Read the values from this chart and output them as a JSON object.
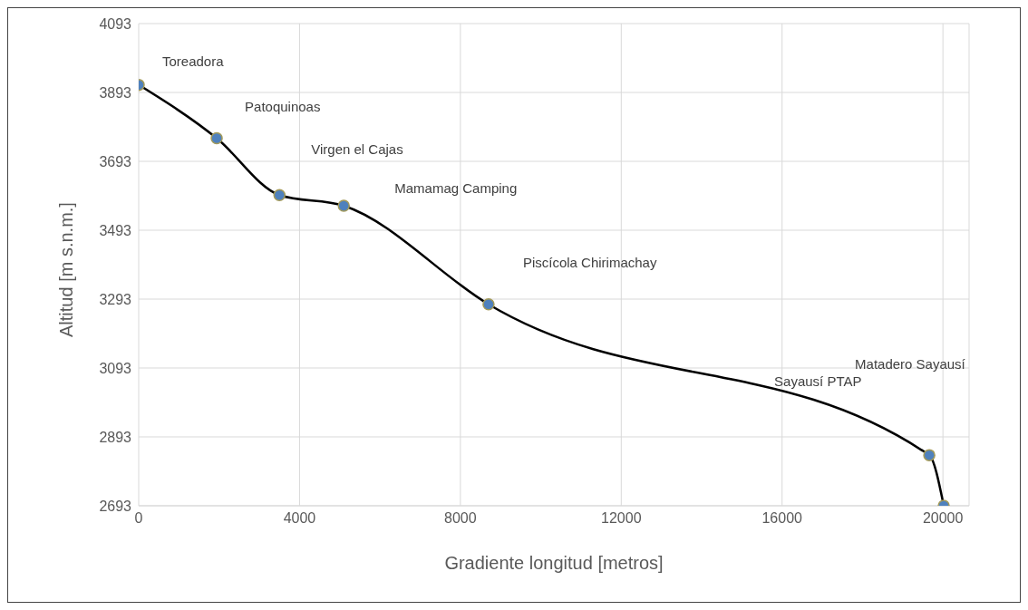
{
  "chart_data": {
    "type": "line",
    "xlabel": "Gradiente  longitud [metros]",
    "ylabel": "Altitud [m s.n.m.]",
    "x": [
      0,
      1940,
      3500,
      5100,
      8700,
      19660,
      20020
    ],
    "series": [
      {
        "color": "#000000",
        "values": [
          3915,
          3760,
          3595,
          3564,
          3278,
          2840,
          2693
        ]
      }
    ],
    "annotations": [
      "Toreadora",
      "Patoquinoas",
      "Virgen el Cajas",
      "Mamamag Camping",
      "Piscícola Chirimachay",
      "Sayausí PTAP",
      "Matadero Sayausí"
    ],
    "xlim": [
      0,
      20650
    ],
    "xticks": [
      0,
      4000,
      8000,
      12000,
      16000,
      20000
    ],
    "ylim": [
      2693,
      4093
    ],
    "yticks": [
      2693,
      2893,
      3093,
      3293,
      3493,
      3693,
      3893,
      4093
    ],
    "grid": true,
    "legend": false,
    "marker": "circle",
    "line_style": "solid"
  }
}
